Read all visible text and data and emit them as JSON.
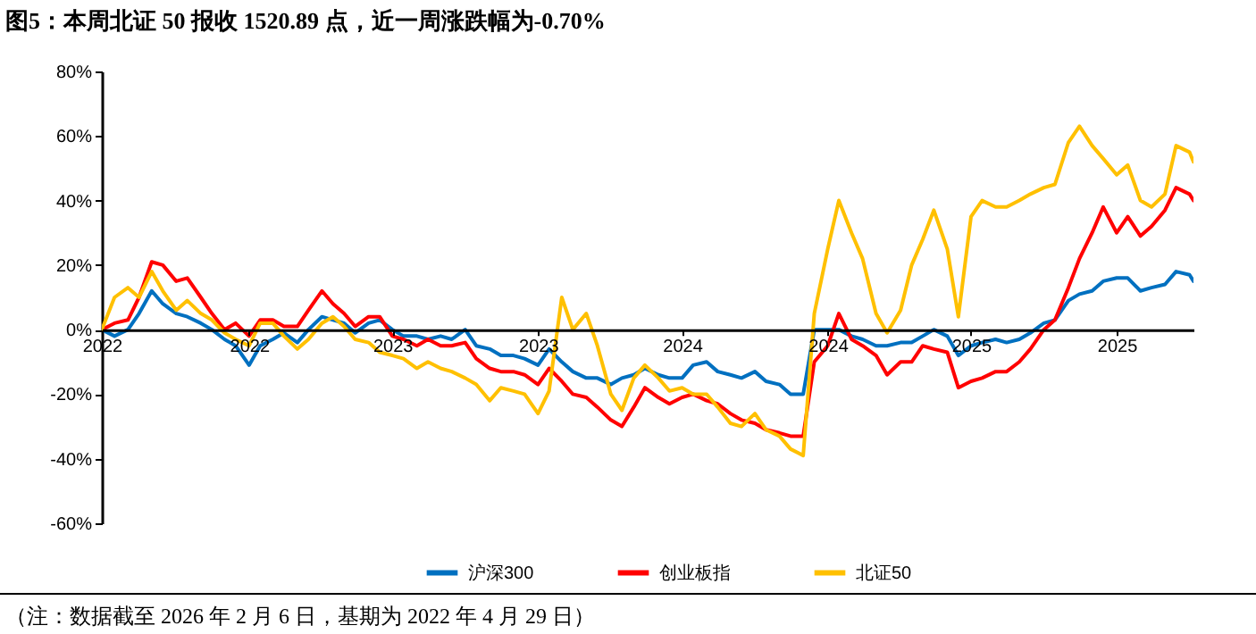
{
  "chart_data": {
    "type": "line",
    "title": "图5：本周北证 50 报收 1520.89 点，近一周涨跌幅为-0.70%",
    "annotations": [
      "（注：数据截至 2026 年 2 月 6 日，基期为 2022 年 4 月 29 日）"
    ],
    "x": [
      "2022-04-29",
      "2022-05-15",
      "2022-06-01",
      "2022-06-15",
      "2022-07-01",
      "2022-07-15",
      "2022-08-01",
      "2022-08-15",
      "2022-09-01",
      "2022-09-15",
      "2022-10-01",
      "2022-10-15",
      "2022-11-01",
      "2022-11-15",
      "2022-12-01",
      "2022-12-15",
      "2023-01-01",
      "2023-01-15",
      "2023-02-01",
      "2023-02-15",
      "2023-03-01",
      "2023-03-15",
      "2023-04-01",
      "2023-04-15",
      "2023-05-01",
      "2023-05-15",
      "2023-06-01",
      "2023-06-15",
      "2023-07-01",
      "2023-07-15",
      "2023-08-01",
      "2023-08-15",
      "2023-09-01",
      "2023-09-15",
      "2023-10-01",
      "2023-10-15",
      "2023-11-01",
      "2023-11-15",
      "2023-12-01",
      "2023-12-15",
      "2024-01-01",
      "2024-01-15",
      "2024-02-01",
      "2024-02-15",
      "2024-03-01",
      "2024-03-15",
      "2024-04-01",
      "2024-04-15",
      "2024-05-01",
      "2024-05-15",
      "2024-06-01",
      "2024-06-15",
      "2024-07-01",
      "2024-07-15",
      "2024-08-01",
      "2024-08-15",
      "2024-09-01",
      "2024-09-15",
      "2024-10-01",
      "2024-10-15",
      "2024-11-01",
      "2024-11-15",
      "2024-12-01",
      "2024-12-15",
      "2025-01-01",
      "2025-01-15",
      "2025-02-01",
      "2025-02-15",
      "2025-03-01",
      "2025-03-15",
      "2025-04-01",
      "2025-04-15",
      "2025-05-01",
      "2025-05-15",
      "2025-06-01",
      "2025-06-15",
      "2025-07-01",
      "2025-07-15",
      "2025-08-01",
      "2025-08-15",
      "2025-09-01",
      "2025-09-15",
      "2025-10-01",
      "2025-10-15",
      "2025-11-01",
      "2025-11-15",
      "2025-12-01",
      "2025-12-15",
      "2026-01-01",
      "2026-01-15",
      "2026-02-01",
      "2026-02-06"
    ],
    "series": [
      {
        "name": "沪深300",
        "color": "#0070c0",
        "values": [
          0,
          -2,
          0,
          5,
          12,
          8,
          5,
          4,
          2,
          0,
          -3,
          -5,
          -11,
          -5,
          -3,
          -1,
          -4,
          0,
          4,
          3,
          2,
          -1,
          2,
          3,
          0,
          -2,
          -2,
          -3,
          -2,
          -3,
          0,
          -5,
          -6,
          -8,
          -8,
          -9,
          -11,
          -6,
          -10,
          -13,
          -15,
          -15,
          -17,
          -15,
          -14,
          -12,
          -14,
          -15,
          -15,
          -11,
          -10,
          -13,
          -14,
          -15,
          -13,
          -16,
          -17,
          -20,
          -20,
          0,
          0,
          0,
          -2,
          -3,
          -5,
          -5,
          -4,
          -4,
          -2,
          0,
          -2,
          -8,
          -5,
          -4,
          -3,
          -4,
          -3,
          -1,
          2,
          3,
          9,
          11,
          12,
          15,
          16,
          16,
          12,
          13,
          14,
          18,
          17,
          15
        ]
      },
      {
        "name": "创业板指",
        "color": "#ff0000",
        "values": [
          0,
          2,
          3,
          10,
          21,
          20,
          15,
          16,
          10,
          5,
          0,
          2,
          -2,
          3,
          3,
          1,
          1,
          6,
          12,
          8,
          5,
          1,
          4,
          4,
          -2,
          -3,
          -5,
          -3,
          -5,
          -5,
          -4,
          -9,
          -12,
          -13,
          -13,
          -14,
          -17,
          -12,
          -16,
          -20,
          -21,
          -24,
          -28,
          -30,
          -24,
          -18,
          -21,
          -23,
          -21,
          -20,
          -22,
          -23,
          -26,
          -28,
          -29,
          -31,
          -32,
          -33,
          -33,
          -10,
          -5,
          5,
          -3,
          -5,
          -8,
          -14,
          -10,
          -10,
          -5,
          -6,
          -7,
          -18,
          -16,
          -15,
          -13,
          -13,
          -10,
          -6,
          0,
          3,
          13,
          22,
          30,
          38,
          30,
          35,
          29,
          32,
          37,
          44,
          42,
          40
        ]
      },
      {
        "name": "北证50",
        "color": "#ffc000",
        "values": [
          0,
          10,
          13,
          10,
          18,
          12,
          6,
          9,
          5,
          3,
          -1,
          -3,
          -5,
          2,
          2,
          -2,
          -6,
          -3,
          2,
          4,
          1,
          -3,
          -4,
          -7,
          -8,
          -9,
          -12,
          -10,
          -12,
          -13,
          -15,
          -17,
          -22,
          -18,
          -19,
          -20,
          -26,
          -19,
          10,
          0,
          5,
          -5,
          -20,
          -25,
          -15,
          -11,
          -15,
          -19,
          -18,
          -20,
          -20,
          -24,
          -29,
          -30,
          -26,
          -31,
          -33,
          -37,
          -39,
          5,
          25,
          40,
          30,
          22,
          5,
          -1,
          6,
          20,
          28,
          37,
          25,
          4,
          35,
          40,
          38,
          38,
          40,
          42,
          44,
          45,
          58,
          63,
          57,
          53,
          48,
          51,
          40,
          38,
          42,
          57,
          55,
          52
        ]
      }
    ],
    "xlim": [
      "2022-04-29",
      "2026-02-06"
    ],
    "xticks": [
      {
        "value": "2022-04-29",
        "label": "2022"
      },
      {
        "value": "2022-11-01",
        "label": "2022"
      },
      {
        "value": "2023-05-01",
        "label": "2023"
      },
      {
        "value": "2023-11-01",
        "label": "2023"
      },
      {
        "value": "2024-05-01",
        "label": "2024"
      },
      {
        "value": "2024-11-01",
        "label": "2024"
      },
      {
        "value": "2025-05-01",
        "label": "2025"
      },
      {
        "value": "2025-11-01",
        "label": "2025"
      }
    ],
    "ylim": [
      -60,
      80
    ],
    "yticks": [
      {
        "value": -60,
        "label": "-60%"
      },
      {
        "value": -40,
        "label": "-40%"
      },
      {
        "value": -20,
        "label": "-20%"
      },
      {
        "value": 0,
        "label": "0%"
      },
      {
        "value": 20,
        "label": "20%"
      },
      {
        "value": 40,
        "label": "40%"
      },
      {
        "value": 60,
        "label": "60%"
      },
      {
        "value": 80,
        "label": "80%"
      }
    ],
    "grid": false,
    "legend": "bottom",
    "marker": "none",
    "line_style": "solid"
  }
}
